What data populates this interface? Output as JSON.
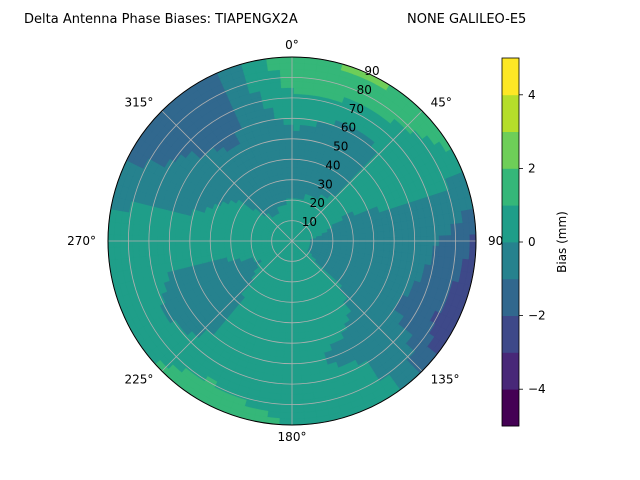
{
  "chart_data": {
    "type": "heatmap",
    "projection": "polar",
    "title_left": "Delta Antenna Phase Biases: TIAPENGX2A",
    "title_right": "NONE GALILEO-E5",
    "theta_ticks": [
      "0°",
      "45°",
      "90°",
      "135°",
      "180°",
      "225°",
      "270°",
      "315°"
    ],
    "theta_tick_angles": [
      0,
      45,
      90,
      135,
      180,
      225,
      270,
      315
    ],
    "theta_direction": "clockwise",
    "theta_zero": "north",
    "r_ticks": [
      "10",
      "20",
      "30",
      "40",
      "50",
      "60",
      "70",
      "80",
      "90"
    ],
    "r_tick_values": [
      10,
      20,
      30,
      40,
      50,
      60,
      70,
      80,
      90
    ],
    "rlim": [
      0,
      90
    ],
    "grid": true,
    "colorbar": {
      "label": "Bias (mm)",
      "range": [
        -5,
        5
      ],
      "levels": [
        -5,
        -4,
        -3,
        -2,
        -1,
        0,
        1,
        2,
        3,
        4,
        5
      ],
      "colors": [
        "#440154",
        "#482878",
        "#3e4989",
        "#31688e",
        "#26828e",
        "#1f9e89",
        "#35b779",
        "#6ece58",
        "#b5de2b",
        "#fde725"
      ],
      "tick_labels": [
        "−4",
        "−2",
        "0",
        "2",
        "4"
      ],
      "tick_values": [
        -4,
        -2,
        0,
        2,
        4
      ]
    },
    "field": {
      "azimuth_deg": [
        0,
        30,
        60,
        90,
        120,
        150,
        180,
        210,
        240,
        270,
        300,
        330
      ],
      "elevation_ring_deg": [
        0,
        15,
        30,
        45,
        60,
        75,
        90
      ],
      "bias_mm": [
        [
          0.3,
          0.3,
          0.3,
          0.3,
          0.3,
          0.3,
          0.3,
          0.3,
          0.3,
          0.3,
          0.3,
          0.3
        ],
        [
          0.2,
          0.2,
          0.3,
          -0.2,
          -0.2,
          0.4,
          0.5,
          0.2,
          0.1,
          0.3,
          0.1,
          0.0
        ],
        [
          -0.3,
          -0.1,
          0.1,
          -0.6,
          -0.4,
          0.5,
          0.6,
          0.3,
          -0.3,
          0.4,
          0.2,
          -0.5
        ],
        [
          -0.6,
          -0.4,
          0.4,
          -0.8,
          -0.5,
          0.2,
          0.4,
          0.2,
          -0.6,
          0.5,
          -0.2,
          -0.8
        ],
        [
          0.3,
          -0.4,
          0.5,
          -0.6,
          -1.0,
          -0.3,
          0.3,
          0.5,
          -0.8,
          0.6,
          -0.8,
          -1.2
        ],
        [
          1.2,
          1.1,
          0.6,
          -1.1,
          -1.6,
          0.2,
          0.6,
          0.8,
          0.1,
          0.8,
          -1.0,
          -1.4
        ],
        [
          2.0,
          2.2,
          1.0,
          -2.2,
          -3.2,
          0.6,
          1.0,
          1.6,
          0.8,
          0.7,
          -1.3,
          -1.8
        ]
      ]
    }
  }
}
